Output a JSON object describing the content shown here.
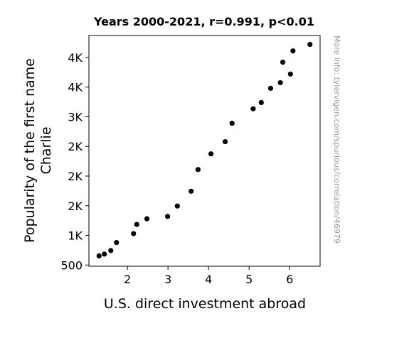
{
  "chart_data": {
    "type": "scatter",
    "title": "Years 2000-2021, r=0.991, p<0.01",
    "xlabel": "U.S. direct investment abroad",
    "ylabel_lines": [
      "Popularity of the first name",
      "Charlie"
    ],
    "xlim": [
      1.05,
      6.75
    ],
    "ylim": [
      480,
      4370
    ],
    "x_ticks": [
      {
        "value": 2,
        "label": "2"
      },
      {
        "value": 3,
        "label": "3"
      },
      {
        "value": 4,
        "label": "4"
      },
      {
        "value": 5,
        "label": "5"
      },
      {
        "value": 6,
        "label": "6"
      }
    ],
    "y_ticks": [
      {
        "value": 500,
        "label": "500"
      },
      {
        "value": 1000,
        "label": "1K"
      },
      {
        "value": 1500,
        "label": "2K"
      },
      {
        "value": 2000,
        "label": "2K"
      },
      {
        "value": 2500,
        "label": "2K"
      },
      {
        "value": 3000,
        "label": "3K"
      },
      {
        "value": 3500,
        "label": "4K"
      },
      {
        "value": 4000,
        "label": "4K"
      }
    ],
    "points": [
      {
        "x": 1.3,
        "y": 655
      },
      {
        "x": 1.43,
        "y": 685
      },
      {
        "x": 1.59,
        "y": 745
      },
      {
        "x": 1.73,
        "y": 880
      },
      {
        "x": 2.15,
        "y": 1030
      },
      {
        "x": 2.23,
        "y": 1185
      },
      {
        "x": 2.48,
        "y": 1280
      },
      {
        "x": 2.99,
        "y": 1320
      },
      {
        "x": 3.23,
        "y": 1495
      },
      {
        "x": 3.57,
        "y": 1745
      },
      {
        "x": 3.74,
        "y": 2110
      },
      {
        "x": 4.06,
        "y": 2375
      },
      {
        "x": 4.41,
        "y": 2580
      },
      {
        "x": 4.58,
        "y": 2890
      },
      {
        "x": 5.1,
        "y": 3135
      },
      {
        "x": 5.3,
        "y": 3240
      },
      {
        "x": 5.53,
        "y": 3480
      },
      {
        "x": 5.77,
        "y": 3575
      },
      {
        "x": 5.83,
        "y": 3920
      },
      {
        "x": 6.02,
        "y": 3720
      },
      {
        "x": 6.08,
        "y": 4110
      },
      {
        "x": 6.5,
        "y": 4220
      }
    ],
    "marker_color": "#000000",
    "grid": false,
    "legend": "none"
  },
  "watermark": "More info: tylervigen.com/spurious/correlation/46979"
}
